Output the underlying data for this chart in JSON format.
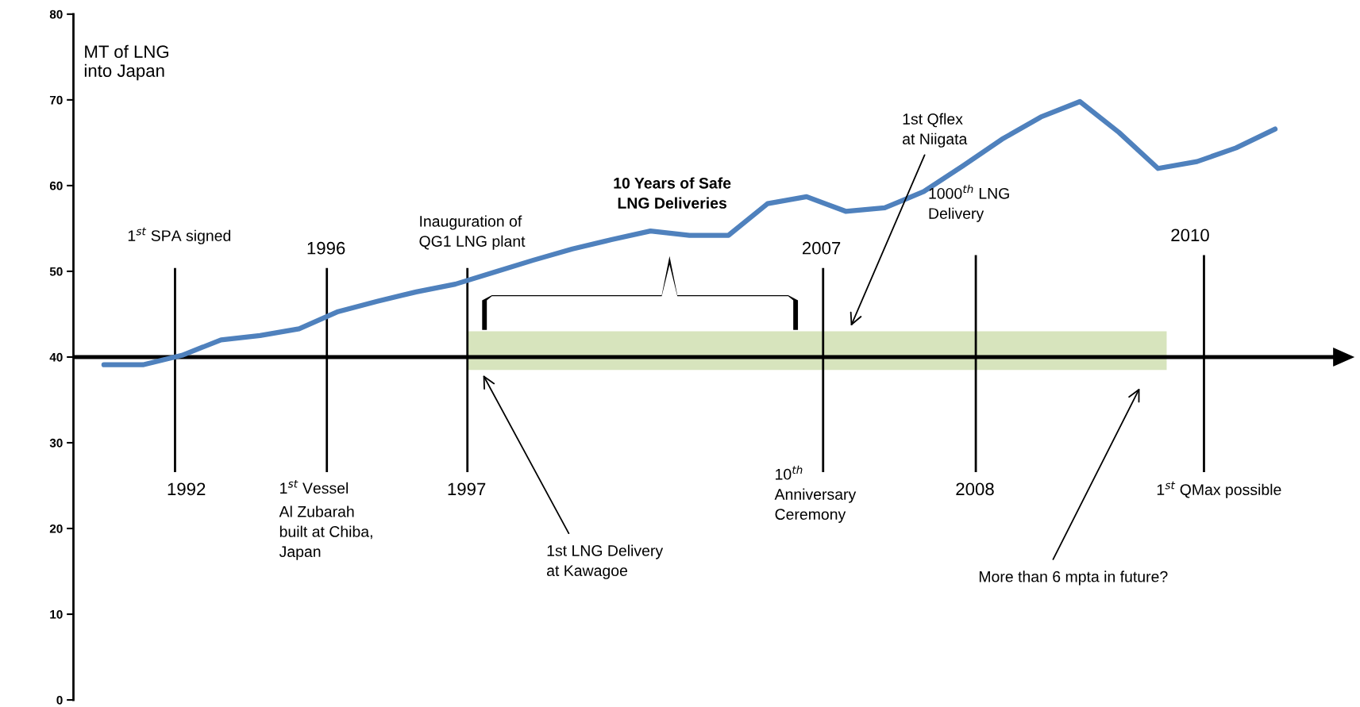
{
  "chart_data": {
    "type": "line",
    "ylabel": "MT of LNG\ninto Japan",
    "categories": [
      null,
      null,
      null,
      null,
      null,
      null,
      null,
      null,
      null,
      null,
      null,
      null,
      null,
      null,
      null,
      null,
      null,
      null,
      null,
      null,
      null,
      null,
      null,
      null,
      null,
      null,
      null,
      null,
      null,
      null,
      null
    ],
    "ylim": [
      0,
      80
    ],
    "yticks": [
      0,
      10,
      20,
      30,
      40,
      50,
      60,
      70,
      80
    ],
    "tick_labels": "y",
    "series": [
      {
        "color": "#4f81bd",
        "values": [
          39.1,
          39.1,
          40.2,
          42.0,
          42.5,
          43.3,
          45.3,
          46.5,
          47.6,
          48.5,
          49.9,
          51.3,
          52.6,
          53.7,
          54.7,
          54.2,
          54.2,
          57.9,
          58.7,
          57.0,
          57.4,
          59.3,
          62.3,
          65.4,
          68.0,
          69.8,
          66.2,
          62.0,
          62.8,
          64.4,
          66.6
        ]
      }
    ],
    "ref_lines": [
      {
        "axis": "y",
        "value": 40,
        "color": "#000000"
      }
    ],
    "bands": [
      {
        "axis": "y",
        "from": 38.5,
        "to": 43,
        "color": "#d7e4bd"
      }
    ],
    "annotations": [
      "1992",
      "1996",
      "1997",
      "2007",
      "2008",
      "2010",
      "1$^{st}$ SPA signed",
      "1$^{st}$ Vessel",
      "Al Zubarah\nbuilt at Chiba,\nJapan",
      "Inauguration of\nQG1 LNG plant",
      "10 Years of Safe\nLNG Deliveries",
      "1st LNG Delivery\nat Kawagoe",
      "10$^{th}$\nAnniversary\nCeremony",
      "1st Qflex\nat Niigata",
      "1000$^{th}$ LNG\nDelivery",
      "1$^{st}$ QMax possible",
      "More than 6 mpta in future?"
    ],
    "grid": false,
    "legend": false,
    "marker": "none",
    "line_style": "solid"
  }
}
